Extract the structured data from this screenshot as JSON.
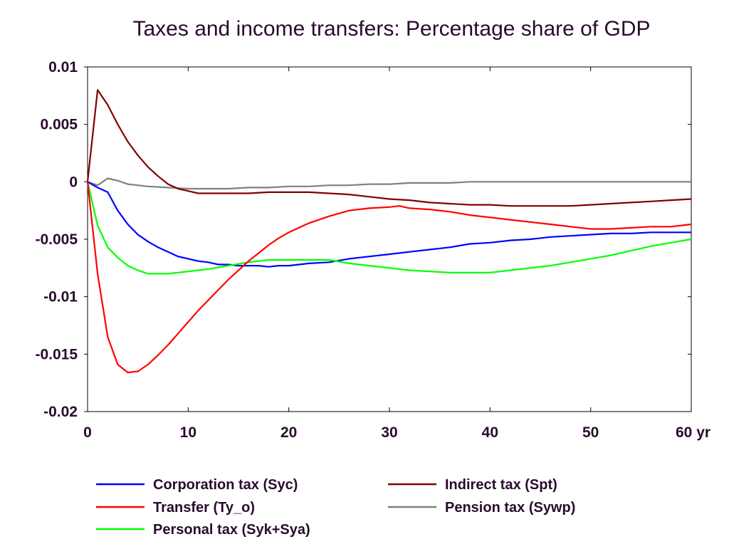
{
  "chart_data": {
    "type": "line",
    "title": "Taxes and income transfers: Percentage share of GDP",
    "xlabel": "",
    "ylabel": "",
    "xlim": [
      0,
      60
    ],
    "ylim": [
      -0.02,
      0.01
    ],
    "x_ticks": [
      0,
      10,
      20,
      30,
      40,
      50,
      60
    ],
    "x_tick_labels": [
      "0",
      "10",
      "20",
      "30",
      "40",
      "50",
      "60 yr"
    ],
    "y_ticks": [
      0.01,
      0.005,
      0,
      -0.005,
      -0.01,
      -0.015,
      -0.02
    ],
    "y_tick_labels": [
      "0.01",
      "0.005",
      "0",
      "-0.005",
      "-0.01",
      "-0.015",
      "-0.02"
    ],
    "grid": false,
    "legend_position": "bottom",
    "series": [
      {
        "name": "Corporation tax (Syc)",
        "color": "#0000ff",
        "x": [
          0,
          1,
          2,
          3,
          4,
          5,
          6,
          7,
          8,
          9,
          10,
          11,
          12,
          13,
          14,
          15,
          16,
          17,
          18,
          19,
          20,
          22,
          24,
          26,
          28,
          30,
          32,
          34,
          36,
          38,
          40,
          42,
          44,
          46,
          48,
          50,
          52,
          54,
          56,
          58,
          60
        ],
        "y": [
          0,
          -0.0005,
          -0.0009,
          -0.0025,
          -0.0037,
          -0.0046,
          -0.0052,
          -0.0057,
          -0.0061,
          -0.0065,
          -0.0067,
          -0.0069,
          -0.007,
          -0.0072,
          -0.0072,
          -0.0073,
          -0.0073,
          -0.0073,
          -0.0074,
          -0.0073,
          -0.0073,
          -0.0071,
          -0.007,
          -0.0067,
          -0.0065,
          -0.0063,
          -0.0061,
          -0.0059,
          -0.0057,
          -0.0054,
          -0.0053,
          -0.0051,
          -0.005,
          -0.0048,
          -0.0047,
          -0.0046,
          -0.0045,
          -0.0045,
          -0.0044,
          -0.0044,
          -0.0044
        ]
      },
      {
        "name": "Transfer (Ty_o)",
        "color": "#ff0000",
        "x": [
          0,
          1,
          2,
          3,
          4,
          5,
          6,
          7,
          8,
          9,
          10,
          11,
          12,
          13,
          14,
          15,
          16,
          17,
          18,
          19,
          20,
          22,
          24,
          26,
          28,
          30,
          31,
          32,
          34,
          36,
          38,
          40,
          42,
          44,
          46,
          48,
          50,
          52,
          54,
          56,
          58,
          60
        ],
        "y": [
          0,
          -0.008,
          -0.0135,
          -0.0159,
          -0.0166,
          -0.0165,
          -0.0159,
          -0.0151,
          -0.0142,
          -0.0132,
          -0.0122,
          -0.0112,
          -0.0103,
          -0.0094,
          -0.0085,
          -0.0077,
          -0.0069,
          -0.0062,
          -0.0055,
          -0.0049,
          -0.0044,
          -0.0036,
          -0.003,
          -0.0025,
          -0.0023,
          -0.0022,
          -0.0021,
          -0.0023,
          -0.0024,
          -0.0026,
          -0.0029,
          -0.0031,
          -0.0033,
          -0.0035,
          -0.0037,
          -0.0039,
          -0.0041,
          -0.0041,
          -0.004,
          -0.0039,
          -0.0039,
          -0.0037
        ]
      },
      {
        "name": "Personal tax (Syk+Sya)",
        "color": "#00ff00",
        "x": [
          0,
          1,
          2,
          3,
          4,
          5,
          6,
          7,
          8,
          9,
          10,
          12,
          14,
          16,
          18,
          20,
          22,
          24,
          26,
          28,
          30,
          32,
          34,
          36,
          38,
          40,
          42,
          44,
          46,
          48,
          50,
          52,
          54,
          56,
          58,
          60
        ],
        "y": [
          0,
          -0.0038,
          -0.0057,
          -0.0066,
          -0.0073,
          -0.0077,
          -0.008,
          -0.008,
          -0.008,
          -0.0079,
          -0.0078,
          -0.0076,
          -0.0073,
          -0.007,
          -0.0068,
          -0.0068,
          -0.0068,
          -0.0068,
          -0.0071,
          -0.0073,
          -0.0075,
          -0.0077,
          -0.0078,
          -0.0079,
          -0.0079,
          -0.0079,
          -0.0077,
          -0.0075,
          -0.0073,
          -0.007,
          -0.0067,
          -0.0064,
          -0.006,
          -0.0056,
          -0.0053,
          -0.005
        ]
      },
      {
        "name": "Indirect tax (Spt)",
        "color": "#800000",
        "x": [
          0,
          1,
          2,
          3,
          4,
          5,
          6,
          7,
          8,
          9,
          10,
          11,
          12,
          14,
          16,
          18,
          20,
          22,
          24,
          26,
          28,
          30,
          32,
          34,
          36,
          38,
          40,
          42,
          44,
          46,
          48,
          50,
          52,
          54,
          56,
          58,
          60
        ],
        "y": [
          0,
          0.008,
          0.0067,
          0.005,
          0.0035,
          0.0023,
          0.0013,
          0.0005,
          -0.0002,
          -0.0006,
          -0.0008,
          -0.001,
          -0.001,
          -0.001,
          -0.001,
          -0.0009,
          -0.0009,
          -0.0009,
          -0.001,
          -0.0011,
          -0.0013,
          -0.0015,
          -0.0016,
          -0.0018,
          -0.0019,
          -0.002,
          -0.002,
          -0.0021,
          -0.0021,
          -0.0021,
          -0.0021,
          -0.002,
          -0.0019,
          -0.0018,
          -0.0017,
          -0.0016,
          -0.0015
        ]
      },
      {
        "name": "Pension tax (Sywp)",
        "color": "#808080",
        "x": [
          0,
          1,
          2,
          3,
          4,
          5,
          6,
          8,
          10,
          12,
          14,
          16,
          18,
          20,
          22,
          24,
          26,
          28,
          30,
          32,
          34,
          36,
          38,
          40,
          42,
          44,
          46,
          48,
          50,
          52,
          54,
          56,
          58,
          60
        ],
        "y": [
          0,
          -0.0003,
          0.0003,
          0.0001,
          -0.0002,
          -0.0003,
          -0.0004,
          -0.0005,
          -0.0006,
          -0.0006,
          -0.0006,
          -0.0005,
          -0.0005,
          -0.0004,
          -0.0004,
          -0.0003,
          -0.0003,
          -0.0002,
          -0.0002,
          -0.0001,
          -0.0001,
          -0.0001,
          0,
          0,
          0,
          0,
          0,
          0,
          0,
          0,
          0,
          0,
          0,
          0
        ]
      }
    ],
    "legend_layout": [
      [
        0,
        3
      ],
      [
        1,
        4
      ],
      [
        2
      ]
    ]
  }
}
